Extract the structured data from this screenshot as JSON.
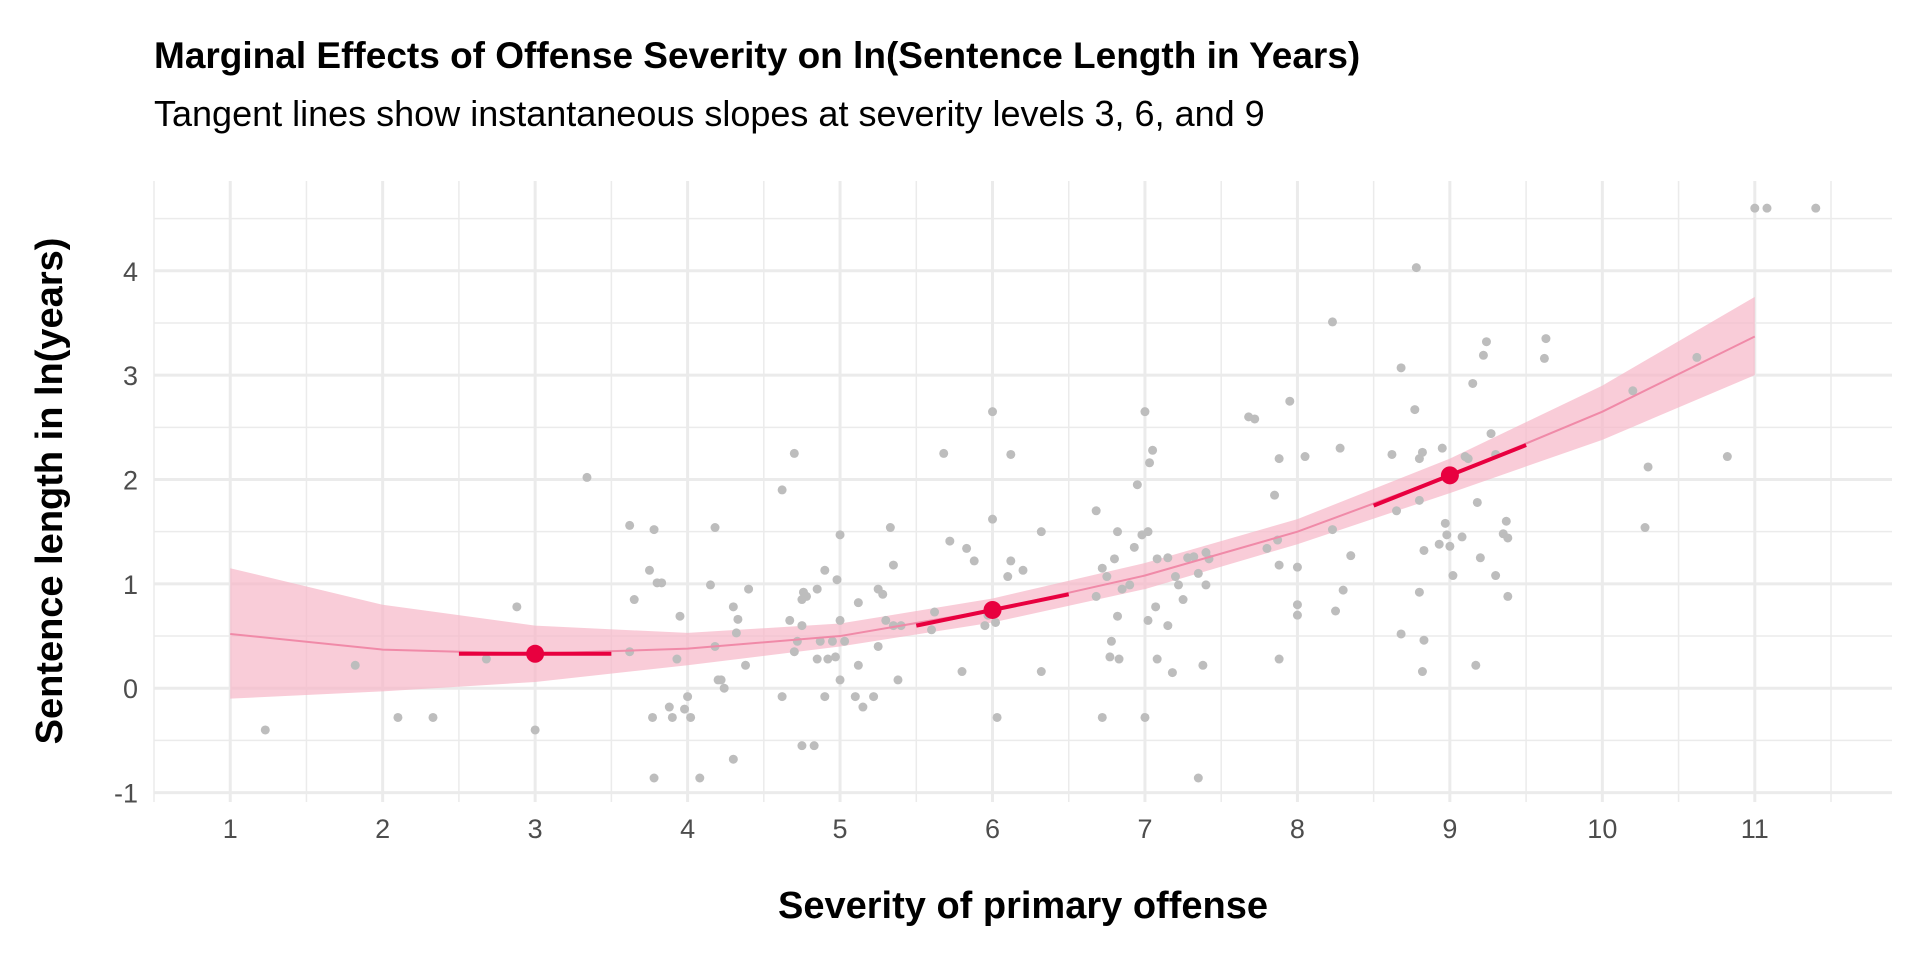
{
  "chart_data": {
    "type": "scatter",
    "title": "Marginal Effects of Offense Severity on ln(Sentence Length in Years)",
    "subtitle": "Tangent lines show instantaneous slopes at severity levels 3, 6, and 9",
    "xlabel": "Severity of primary offense",
    "ylabel": "Sentence length in ln(years)",
    "xlim": [
      0.5,
      11.9
    ],
    "ylim": [
      -1.09,
      4.86
    ],
    "xticks": [
      1,
      2,
      3,
      4,
      5,
      6,
      7,
      8,
      9,
      10,
      11
    ],
    "yticks": [
      -1,
      0,
      1,
      2,
      3,
      4
    ],
    "grid": true,
    "colors": {
      "points": "#bdbdbd",
      "fit": "#f08aa8",
      "band": "#f7b6c8",
      "tangent": "#e8003f"
    },
    "fit": {
      "x": [
        1,
        2,
        3,
        4,
        5,
        6,
        7,
        8,
        9,
        10,
        11
      ],
      "y": [
        0.52,
        0.37,
        0.33,
        0.38,
        0.5,
        0.75,
        1.08,
        1.5,
        2.04,
        2.65,
        3.37
      ],
      "lower": [
        -0.1,
        -0.03,
        0.06,
        0.22,
        0.4,
        0.63,
        0.95,
        1.38,
        1.87,
        2.38,
        3.0
      ],
      "upper": [
        1.15,
        0.8,
        0.6,
        0.53,
        0.62,
        0.86,
        1.2,
        1.62,
        2.2,
        2.9,
        3.75
      ]
    },
    "tangents": [
      {
        "at": 3,
        "y": 0.33,
        "x": [
          2.5,
          3.5
        ],
        "yends": [
          0.33,
          0.33
        ]
      },
      {
        "at": 6,
        "y": 0.75,
        "x": [
          5.5,
          6.5
        ],
        "yends": [
          0.6,
          0.9
        ]
      },
      {
        "at": 9,
        "y": 2.04,
        "x": [
          8.5,
          9.5
        ],
        "yends": [
          1.75,
          2.33
        ]
      }
    ],
    "points": [
      [
        1.23,
        -0.4
      ],
      [
        1.82,
        0.22
      ],
      [
        2.1,
        -0.28
      ],
      [
        2.33,
        -0.28
      ],
      [
        2.88,
        0.78
      ],
      [
        2.68,
        0.28
      ],
      [
        3.0,
        -0.4
      ],
      [
        3.34,
        2.02
      ],
      [
        3.62,
        0.35
      ],
      [
        3.62,
        1.56
      ],
      [
        3.65,
        0.85
      ],
      [
        3.75,
        1.13
      ],
      [
        3.77,
        -0.28
      ],
      [
        3.78,
        1.52
      ],
      [
        3.8,
        1.01
      ],
      [
        3.83,
        1.01
      ],
      [
        3.78,
        -0.86
      ],
      [
        3.88,
        -0.18
      ],
      [
        3.9,
        -0.28
      ],
      [
        3.93,
        0.28
      ],
      [
        3.95,
        0.69
      ],
      [
        3.98,
        -0.2
      ],
      [
        4.0,
        -0.08
      ],
      [
        4.02,
        -0.28
      ],
      [
        4.08,
        -0.86
      ],
      [
        4.15,
        0.99
      ],
      [
        4.18,
        0.4
      ],
      [
        4.18,
        1.54
      ],
      [
        4.2,
        0.08
      ],
      [
        4.22,
        0.08
      ],
      [
        4.24,
        0.0
      ],
      [
        4.3,
        0.78
      ],
      [
        4.3,
        -0.68
      ],
      [
        4.32,
        0.53
      ],
      [
        4.33,
        0.66
      ],
      [
        4.38,
        0.22
      ],
      [
        4.4,
        0.95
      ],
      [
        4.62,
        -0.08
      ],
      [
        4.62,
        1.9
      ],
      [
        4.67,
        0.65
      ],
      [
        4.7,
        0.35
      ],
      [
        4.72,
        0.45
      ],
      [
        4.7,
        2.25
      ],
      [
        4.75,
        0.6
      ],
      [
        4.75,
        0.85
      ],
      [
        4.76,
        0.92
      ],
      [
        4.75,
        -0.55
      ],
      [
        4.78,
        0.88
      ],
      [
        4.83,
        -0.55
      ],
      [
        4.85,
        0.28
      ],
      [
        4.85,
        0.95
      ],
      [
        4.87,
        0.45
      ],
      [
        4.9,
        1.13
      ],
      [
        4.9,
        -0.08
      ],
      [
        4.92,
        0.28
      ],
      [
        4.95,
        0.45
      ],
      [
        4.97,
        0.3
      ],
      [
        4.98,
        1.04
      ],
      [
        5.0,
        0.08
      ],
      [
        5.0,
        1.47
      ],
      [
        5.0,
        0.65
      ],
      [
        5.03,
        0.45
      ],
      [
        5.1,
        -0.08
      ],
      [
        5.12,
        0.22
      ],
      [
        5.12,
        0.82
      ],
      [
        5.15,
        -0.18
      ],
      [
        5.22,
        -0.08
      ],
      [
        5.25,
        0.4
      ],
      [
        5.25,
        0.95
      ],
      [
        5.28,
        0.9
      ],
      [
        5.3,
        0.65
      ],
      [
        5.33,
        1.54
      ],
      [
        5.35,
        1.18
      ],
      [
        5.38,
        0.08
      ],
      [
        5.35,
        0.6
      ],
      [
        5.4,
        0.6
      ],
      [
        5.62,
        0.73
      ],
      [
        5.6,
        0.56
      ],
      [
        5.68,
        2.25
      ],
      [
        5.72,
        1.41
      ],
      [
        5.8,
        0.16
      ],
      [
        5.83,
        1.34
      ],
      [
        5.88,
        1.22
      ],
      [
        5.95,
        0.6
      ],
      [
        5.97,
        0.7
      ],
      [
        6.0,
        2.65
      ],
      [
        6.0,
        1.62
      ],
      [
        6.02,
        0.63
      ],
      [
        6.03,
        -0.28
      ],
      [
        6.1,
        1.07
      ],
      [
        6.12,
        2.24
      ],
      [
        6.12,
        1.22
      ],
      [
        6.2,
        1.13
      ],
      [
        6.32,
        0.16
      ],
      [
        6.32,
        1.5
      ],
      [
        6.68,
        0.88
      ],
      [
        6.68,
        1.7
      ],
      [
        6.72,
        -0.28
      ],
      [
        6.72,
        1.15
      ],
      [
        6.75,
        1.07
      ],
      [
        6.77,
        0.3
      ],
      [
        6.78,
        0.45
      ],
      [
        6.8,
        1.24
      ],
      [
        6.82,
        0.69
      ],
      [
        6.82,
        1.5
      ],
      [
        6.85,
        0.95
      ],
      [
        6.83,
        0.28
      ],
      [
        6.9,
        0.99
      ],
      [
        6.93,
        1.35
      ],
      [
        6.95,
        1.95
      ],
      [
        6.98,
        1.47
      ],
      [
        7.0,
        2.65
      ],
      [
        7.0,
        -0.28
      ],
      [
        7.02,
        0.65
      ],
      [
        7.02,
        1.5
      ],
      [
        7.05,
        2.28
      ],
      [
        7.03,
        2.16
      ],
      [
        7.07,
        0.78
      ],
      [
        7.08,
        1.24
      ],
      [
        7.08,
        0.28
      ],
      [
        7.15,
        0.6
      ],
      [
        7.15,
        1.25
      ],
      [
        7.18,
        0.15
      ],
      [
        7.2,
        1.07
      ],
      [
        7.22,
        0.99
      ],
      [
        7.25,
        0.85
      ],
      [
        7.28,
        1.25
      ],
      [
        7.32,
        1.26
      ],
      [
        7.35,
        -0.86
      ],
      [
        7.35,
        1.1
      ],
      [
        7.38,
        0.22
      ],
      [
        7.4,
        1.3
      ],
      [
        7.4,
        0.99
      ],
      [
        7.42,
        1.24
      ],
      [
        7.68,
        2.6
      ],
      [
        7.72,
        2.58
      ],
      [
        7.8,
        1.34
      ],
      [
        7.85,
        1.85
      ],
      [
        7.87,
        1.42
      ],
      [
        7.88,
        0.28
      ],
      [
        7.88,
        2.2
      ],
      [
        7.88,
        1.18
      ],
      [
        7.95,
        2.75
      ],
      [
        8.0,
        1.16
      ],
      [
        8.0,
        0.7
      ],
      [
        8.0,
        0.8
      ],
      [
        8.05,
        2.22
      ],
      [
        8.23,
        3.51
      ],
      [
        8.23,
        1.52
      ],
      [
        8.25,
        0.74
      ],
      [
        8.28,
        2.3
      ],
      [
        8.3,
        0.94
      ],
      [
        8.35,
        1.27
      ],
      [
        8.62,
        2.24
      ],
      [
        8.65,
        1.7
      ],
      [
        8.68,
        3.07
      ],
      [
        8.68,
        0.52
      ],
      [
        8.77,
        2.67
      ],
      [
        8.78,
        4.03
      ],
      [
        8.8,
        1.8
      ],
      [
        8.8,
        0.92
      ],
      [
        8.8,
        2.2
      ],
      [
        8.82,
        0.16
      ],
      [
        8.83,
        0.46
      ],
      [
        8.82,
        2.26
      ],
      [
        8.83,
        1.32
      ],
      [
        8.93,
        1.38
      ],
      [
        8.95,
        2.3
      ],
      [
        8.97,
        1.58
      ],
      [
        8.98,
        1.47
      ],
      [
        9.0,
        1.36
      ],
      [
        9.02,
        1.08
      ],
      [
        9.08,
        1.45
      ],
      [
        9.1,
        2.22
      ],
      [
        9.12,
        2.2
      ],
      [
        9.15,
        2.92
      ],
      [
        9.17,
        0.22
      ],
      [
        9.18,
        1.78
      ],
      [
        9.2,
        1.25
      ],
      [
        9.22,
        3.19
      ],
      [
        9.24,
        3.32
      ],
      [
        9.27,
        2.44
      ],
      [
        9.3,
        2.24
      ],
      [
        9.3,
        1.08
      ],
      [
        9.35,
        1.48
      ],
      [
        9.37,
        1.6
      ],
      [
        9.38,
        1.44
      ],
      [
        9.38,
        0.88
      ],
      [
        9.62,
        3.16
      ],
      [
        9.63,
        3.35
      ],
      [
        10.2,
        2.85
      ],
      [
        10.28,
        1.54
      ],
      [
        10.3,
        2.12
      ],
      [
        10.62,
        3.17
      ],
      [
        10.82,
        2.22
      ],
      [
        11.0,
        4.6
      ],
      [
        11.08,
        4.6
      ],
      [
        11.4,
        4.6
      ]
    ]
  }
}
